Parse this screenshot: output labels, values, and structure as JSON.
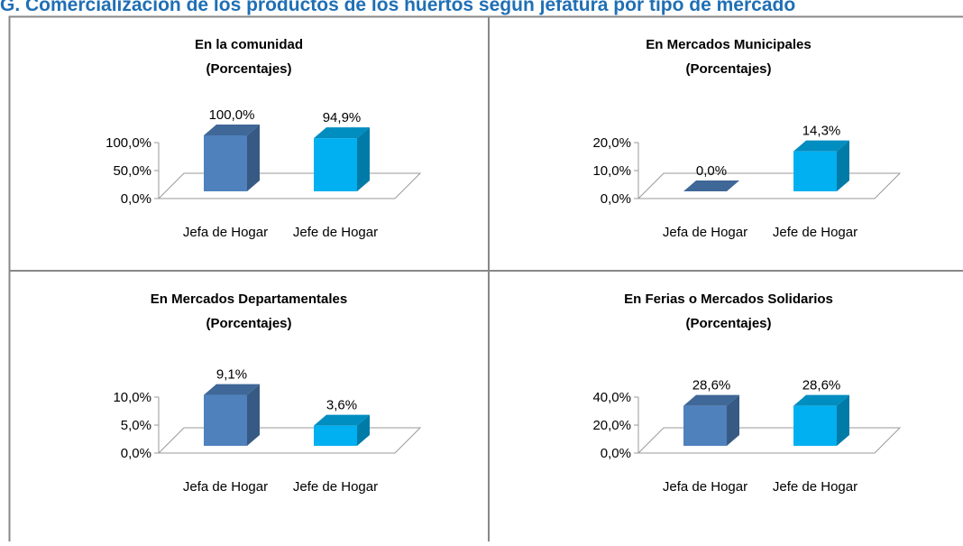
{
  "page_title": "G. Comercialización de los productos de los huertos según jefatura por tipo de mercado",
  "chart_data": [
    {
      "type": "bar3d",
      "title": "En la comunidad",
      "subtitle": "(Porcentajes)",
      "categories": [
        "Jefa de Hogar",
        "Jefe de Hogar"
      ],
      "values": [
        100,
        94.9
      ],
      "value_labels": [
        "100,0%",
        "94,9%"
      ],
      "colors": [
        "#4f81bd",
        "#00b0f0"
      ],
      "ylim": [
        0,
        100
      ],
      "yticks": [
        {
          "value": 0,
          "label": "0,0%"
        },
        {
          "value": 50,
          "label": "50,0%"
        },
        {
          "value": 100,
          "label": "100,0%"
        }
      ]
    },
    {
      "type": "bar3d",
      "title": "En Mercados Municipales",
      "subtitle": "(Porcentajes)",
      "categories": [
        "Jefa de Hogar",
        "Jefe de Hogar"
      ],
      "values": [
        0,
        14.3
      ],
      "value_labels": [
        "0,0%",
        "14,3%"
      ],
      "colors": [
        "#4f81bd",
        "#00b0f0"
      ],
      "ylim": [
        0,
        20
      ],
      "yticks": [
        {
          "value": 0,
          "label": "0,0%"
        },
        {
          "value": 10,
          "label": "10,0%"
        },
        {
          "value": 20,
          "label": "20,0%"
        }
      ]
    },
    {
      "type": "bar3d",
      "title": "En Mercados Departamentales",
      "subtitle": "(Porcentajes)",
      "categories": [
        "Jefa de Hogar",
        "Jefe de Hogar"
      ],
      "values": [
        9.1,
        3.6
      ],
      "value_labels": [
        "9,1%",
        "3,6%"
      ],
      "colors": [
        "#4f81bd",
        "#00b0f0"
      ],
      "ylim": [
        0,
        10
      ],
      "yticks": [
        {
          "value": 0,
          "label": "0,0%"
        },
        {
          "value": 5,
          "label": "5,0%"
        },
        {
          "value": 10,
          "label": "10,0%"
        }
      ]
    },
    {
      "type": "bar3d",
      "title": "En Ferias o Mercados Solidarios",
      "subtitle": "(Porcentajes)",
      "categories": [
        "Jefa de Hogar",
        "Jefe de Hogar"
      ],
      "values": [
        28.6,
        28.6
      ],
      "value_labels": [
        "28,6%",
        "28,6%"
      ],
      "colors": [
        "#4f81bd",
        "#00b0f0"
      ],
      "ylim": [
        0,
        40
      ],
      "yticks": [
        {
          "value": 0,
          "label": "0,0%"
        },
        {
          "value": 20,
          "label": "20,0%"
        },
        {
          "value": 40,
          "label": "40,0%"
        }
      ]
    }
  ]
}
